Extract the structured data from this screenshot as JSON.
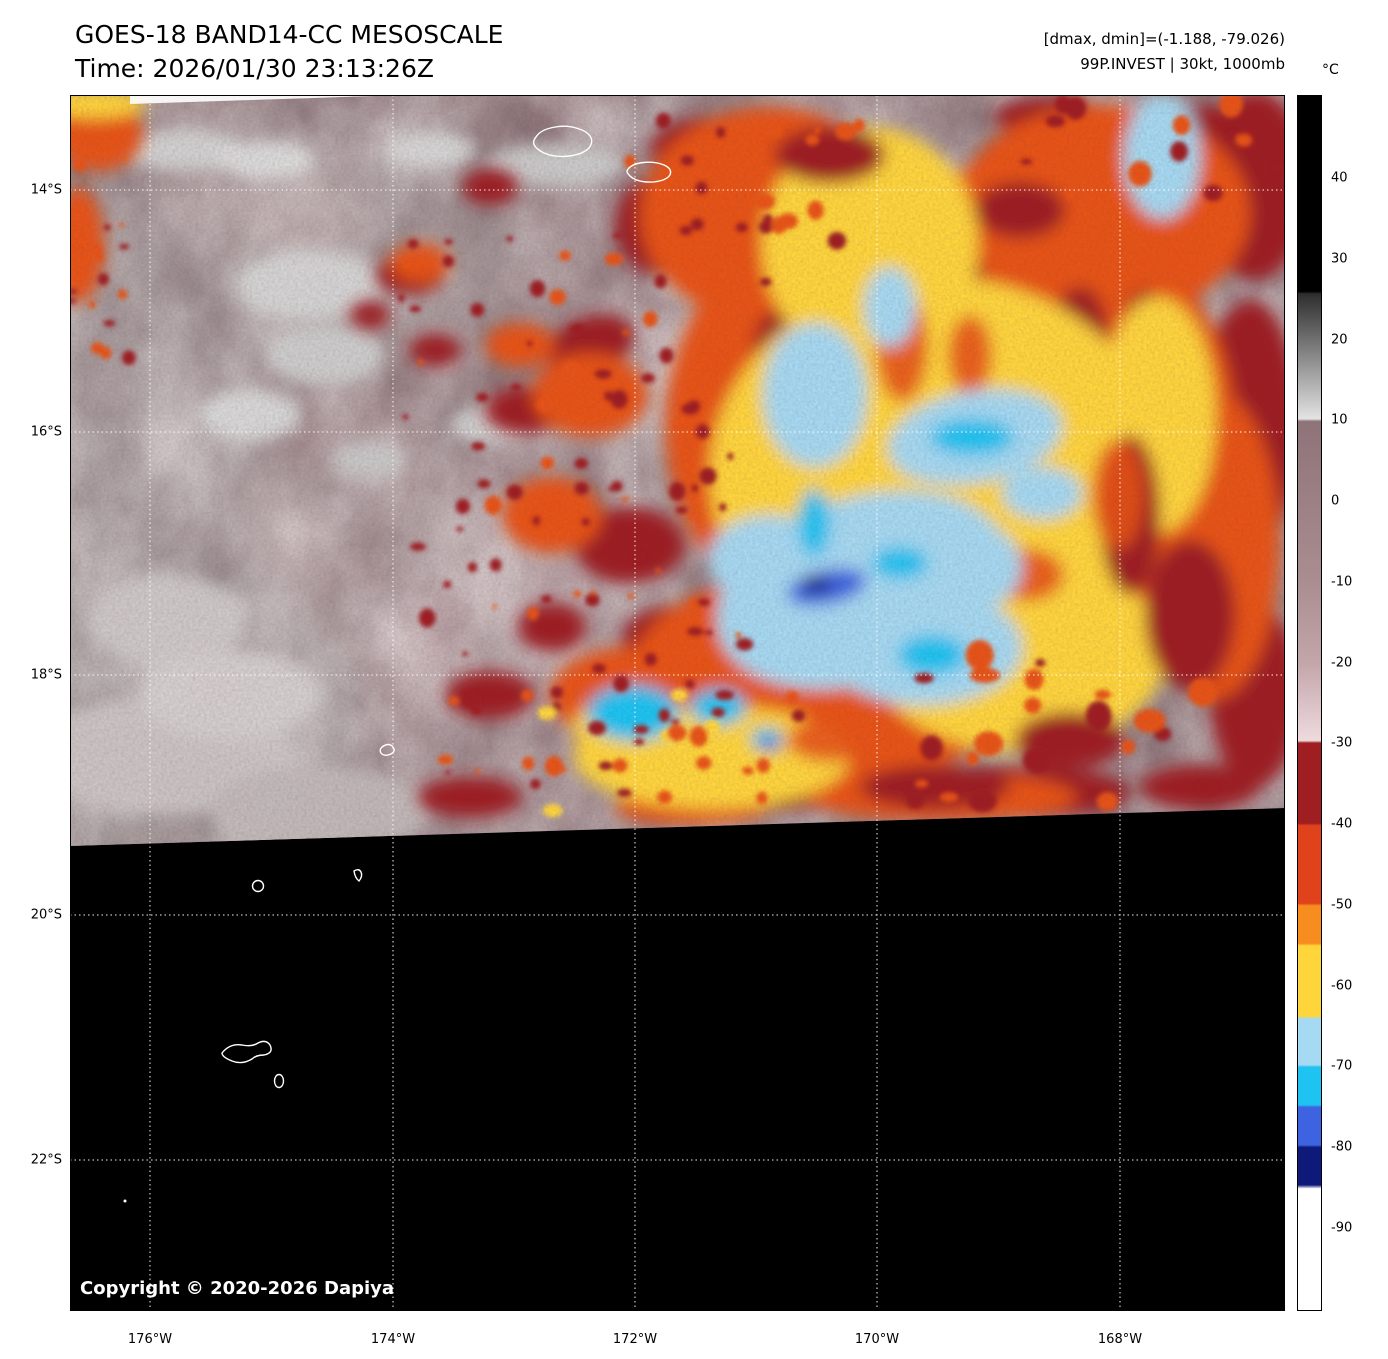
{
  "header": {
    "title": "GOES-18 BAND14-CC MESOSCALE",
    "time": "Time: 2026/01/30 23:13:26Z",
    "readout": "[dmax, dmin]=(-1.188, -79.026)",
    "storm": "99P.INVEST | 30kt, 1000mb"
  },
  "colorbar": {
    "unit": "°C",
    "ticks": [
      "40",
      "30",
      "20",
      "10",
      "0",
      "-10",
      "-20",
      "-30",
      "-40",
      "-50",
      "-60",
      "-70",
      "-80",
      "-90"
    ],
    "range_top_c": 50,
    "range_bottom_c": -100,
    "stops": [
      {
        "p": 0,
        "c": "#000000"
      },
      {
        "p": 16.1,
        "c": "#000000"
      },
      {
        "p": 16.3,
        "c": "#2e2e2e"
      },
      {
        "p": 26.6,
        "c": "#e3e3e3"
      },
      {
        "p": 26.8,
        "c": "#8e7378"
      },
      {
        "p": 40,
        "c": "#a98d91"
      },
      {
        "p": 46.7,
        "c": "#c3a6aa"
      },
      {
        "p": 53.1,
        "c": "#eedadd"
      },
      {
        "p": 53.3,
        "c": "#9e1e22"
      },
      {
        "p": 59.9,
        "c": "#9e1e22"
      },
      {
        "p": 60.1,
        "c": "#e0421c"
      },
      {
        "p": 66.5,
        "c": "#e0421c"
      },
      {
        "p": 66.7,
        "c": "#f78c1f"
      },
      {
        "p": 69.8,
        "c": "#f78c1f"
      },
      {
        "p": 70,
        "c": "#ffd53c"
      },
      {
        "p": 75.8,
        "c": "#ffd53c"
      },
      {
        "p": 76,
        "c": "#a6d9f2"
      },
      {
        "p": 79.8,
        "c": "#a6d9f2"
      },
      {
        "p": 80,
        "c": "#1fc3f2"
      },
      {
        "p": 83.1,
        "c": "#1fc3f2"
      },
      {
        "p": 83.3,
        "c": "#3e63e0"
      },
      {
        "p": 86.4,
        "c": "#3e63e0"
      },
      {
        "p": 86.6,
        "c": "#0e1a7a"
      },
      {
        "p": 89.7,
        "c": "#0e1a7a"
      },
      {
        "p": 90,
        "c": "#ffffff"
      },
      {
        "p": 100,
        "c": "#ffffff"
      }
    ]
  },
  "map": {
    "lat_labels": [
      "14°S",
      "16°S",
      "18°S",
      "20°S",
      "22°S"
    ],
    "lon_labels": [
      "176°W",
      "174°W",
      "172°W",
      "170°W",
      "168°W"
    ],
    "copyright": "Copyright © 2020-2026 Dapiya"
  },
  "palette": {
    "base_mauve": "#9b8286",
    "gray_cloud": "#cfcfcf",
    "pink_light": "#eedadd",
    "dark_red": "#9e1e22",
    "orange": "#e85317",
    "orange_light": "#f78c1f",
    "yellow": "#ffd53c",
    "pale_blue": "#a6d9f2",
    "cyan": "#1fc3f2",
    "blue": "#3e63e0",
    "navy": "#0e1a7a",
    "no_data": "#000000",
    "grid_line": "#ffffff"
  }
}
